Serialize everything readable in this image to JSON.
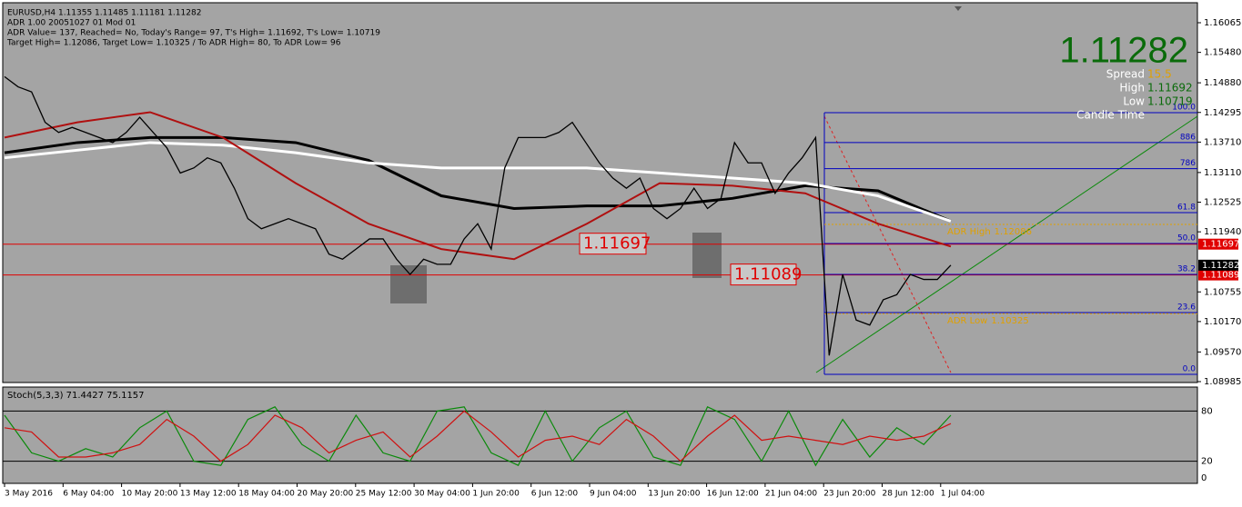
{
  "header": {
    "lines": [
      "EURUSD,H4 1.11355 1.11485 1.11181 1.11282",
      "ADR 1.00 20051027 01 Mod 01",
      "ADR Value= 137, Reached= No, Today's Range= 97, T's High= 1.11692, T's Low= 1.10719",
      "Target High= 1.12086, Target Low= 1.10325 / To ADR High= 80, To ADR Low= 96"
    ]
  },
  "info": {
    "price": 1.11282,
    "spread_label": "Spread",
    "spread": 15.5,
    "high_label": "High",
    "high": 1.11692,
    "low_label": "Low",
    "low": 1.10719,
    "candle_label": "Candle Time"
  },
  "price_axis": {
    "ylim": [
      1.08985,
      1.16065
    ],
    "ticks": [
      1.16065,
      {
        "value": 1.1548,
        "label": "1.15480"
      },
      {
        "value": 1.1488,
        "label": "1.14880"
      },
      1.14295,
      {
        "value": 1.1371,
        "label": "1.13710"
      },
      {
        "value": 1.1311,
        "label": "1.13110"
      },
      1.12525,
      {
        "value": 1.1194,
        "label": "1.11940"
      },
      1.10755,
      {
        "value": 1.1017,
        "label": "1.10170"
      },
      {
        "value": 1.0957,
        "label": "1.09570"
      },
      1.08985
    ]
  },
  "levels": {
    "upper": 1.11697,
    "lower": 1.11089
  },
  "adr": {
    "high_label": "ADR High",
    "high": 1.12086,
    "low_label": "ADR Low",
    "low": 1.10325
  },
  "fib": {
    "low": 1.09128,
    "high": 1.1429,
    "levels": [
      {
        "value": 100,
        "label": "100.0"
      },
      {
        "value": 88.6,
        "label": "886"
      },
      {
        "value": 78.6,
        "label": "786"
      },
      61.8,
      {
        "value": 50,
        "label": "50.0"
      },
      38.2,
      23.6,
      {
        "value": 0,
        "label": "0.0"
      }
    ]
  },
  "price": {
    "closes": [
      1.15,
      1.148,
      1.147,
      1.141,
      1.139,
      1.14,
      1.139,
      1.138,
      1.137,
      1.139,
      1.142,
      1.139,
      1.136,
      1.131,
      1.132,
      1.134,
      1.133,
      1.128,
      1.122,
      1.12,
      1.121,
      1.122,
      1.121,
      1.12,
      1.115,
      1.114,
      1.116,
      1.118,
      1.118,
      1.114,
      1.111,
      1.114,
      1.113,
      1.113,
      1.118,
      1.121,
      1.116,
      1.132,
      1.138,
      1.138,
      1.138,
      1.139,
      1.141,
      1.137,
      1.133,
      1.13,
      1.128,
      1.13,
      1.124,
      1.122,
      1.124,
      1.128,
      1.124,
      1.126,
      1.137,
      1.133,
      1.133,
      1.127,
      1.131,
      1.134,
      1.138,
      1.095,
      1.111,
      1.102,
      1.101,
      1.106,
      1.107,
      1.111,
      1.11,
      1.11,
      1.11282
    ],
    "ma": [
      {
        "color": "#000000",
        "values": [
          1.135,
          1.137,
          1.138,
          1.138,
          1.137,
          1.1335,
          1.1265,
          1.124,
          1.1245,
          1.1245,
          1.126,
          1.1285,
          1.1275,
          1.1215
        ]
      },
      {
        "color": "#ffffff",
        "values": [
          1.134,
          1.1355,
          1.137,
          1.1365,
          1.135,
          1.133,
          1.132,
          1.132,
          1.132,
          1.131,
          1.13,
          1.129,
          1.1265,
          1.1215
        ]
      },
      {
        "color": "#b01010",
        "values": [
          1.138,
          1.141,
          1.143,
          1.138,
          1.129,
          1.121,
          1.116,
          1.114,
          1.121,
          1.129,
          1.1285,
          1.127,
          1.121,
          1.1165
        ]
      }
    ]
  },
  "stoch": {
    "title": "Stoch(5,3,3) 71.4427 75.1157",
    "ylim": [
      0,
      100
    ],
    "ticks": [
      80,
      20,
      0
    ],
    "series": [
      {
        "color": "#0a8a0a",
        "values": [
          75,
          30,
          20,
          35,
          25,
          60,
          80,
          20,
          15,
          70,
          85,
          40,
          20,
          75,
          30,
          20,
          80,
          85,
          30,
          15,
          80,
          20,
          60,
          80,
          25,
          15,
          85,
          70,
          20,
          80,
          15,
          70,
          25,
          60,
          40,
          75
        ]
      },
      {
        "color": "#d01010",
        "values": [
          60,
          55,
          25,
          25,
          30,
          40,
          70,
          50,
          20,
          40,
          75,
          60,
          30,
          45,
          55,
          25,
          50,
          80,
          55,
          25,
          45,
          50,
          40,
          70,
          50,
          20,
          50,
          75,
          45,
          50,
          45,
          40,
          50,
          45,
          50,
          65
        ]
      }
    ]
  },
  "time_axis": [
    "3 May 2016",
    "6 May 04:00",
    "10 May 20:00",
    "13 May 12:00",
    "18 May 04:00",
    "20 May 20:00",
    "25 May 12:00",
    "30 May 04:00",
    "1 Jun 20:00",
    "6 Jun 12:00",
    "9 Jun 04:00",
    "13 Jun 20:00",
    "16 Jun 12:00",
    "21 Jun 04:00",
    "23 Jun 20:00",
    "28 Jun 12:00",
    "1 Jul 04:00"
  ]
}
